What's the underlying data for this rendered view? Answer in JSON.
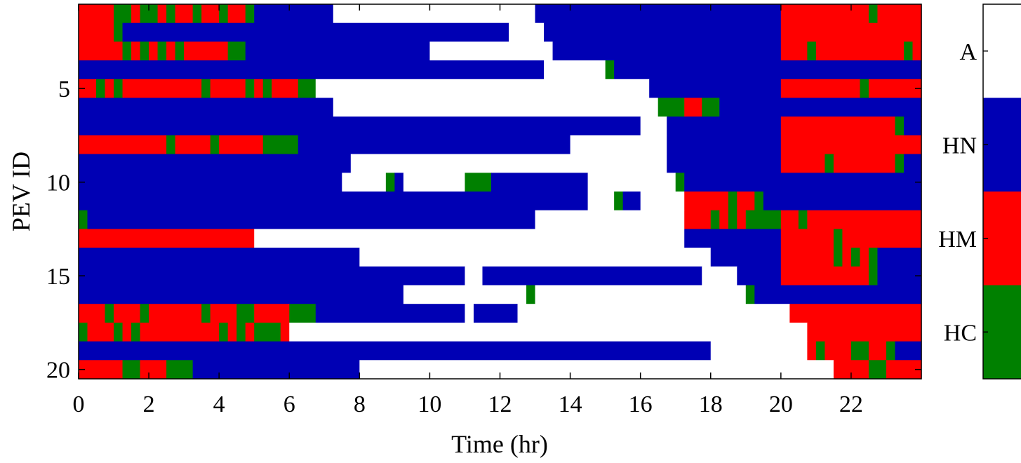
{
  "chart_data": {
    "type": "heatmap",
    "title": "",
    "xlabel": "Time (hr)",
    "ylabel": "PEV ID",
    "xlim": [
      0,
      24
    ],
    "ylim": [
      1,
      20
    ],
    "x_ticks": [
      "0",
      "2",
      "4",
      "6",
      "8",
      "10",
      "12",
      "14",
      "16",
      "18",
      "20",
      "22"
    ],
    "y_ticks": [
      "5",
      "10",
      "15",
      "20"
    ],
    "time_resolution_hr": 0.25,
    "categories": [
      "A",
      "HN",
      "HM",
      "HC"
    ],
    "colors": {
      "A": "#ffffff",
      "HN": "#0000b4",
      "HM": "#ff0000",
      "HC": "#008000"
    },
    "colorbar_labels": [
      "A",
      "HN",
      "HM",
      "HC"
    ],
    "rows": [
      {
        "pev": 1,
        "segments": [
          [
            "HM",
            0,
            1
          ],
          [
            "HC",
            1,
            1.5
          ],
          [
            "HM",
            1.5,
            1.75
          ],
          [
            "HC",
            1.75,
            2.25
          ],
          [
            "HM",
            2.25,
            2.5
          ],
          [
            "HC",
            2.5,
            2.75
          ],
          [
            "HM",
            2.75,
            3.25
          ],
          [
            "HC",
            3.25,
            3.5
          ],
          [
            "HM",
            3.5,
            4
          ],
          [
            "HC",
            4,
            4.25
          ],
          [
            "HM",
            4.25,
            4.75
          ],
          [
            "HC",
            4.75,
            5
          ],
          [
            "HN",
            5,
            7.25
          ],
          [
            "A",
            7.25,
            13
          ],
          [
            "HN",
            13,
            20
          ],
          [
            "HM",
            20,
            22.5
          ],
          [
            "HC",
            22.5,
            22.75
          ],
          [
            "HM",
            22.75,
            24
          ]
        ]
      },
      {
        "pev": 2,
        "segments": [
          [
            "HM",
            0,
            1
          ],
          [
            "HC",
            1,
            1.25
          ],
          [
            "HN",
            1.25,
            12.25
          ],
          [
            "A",
            12.25,
            13.25
          ],
          [
            "HN",
            13.25,
            20
          ],
          [
            "HM",
            20,
            24
          ]
        ]
      },
      {
        "pev": 3,
        "segments": [
          [
            "HM",
            0,
            1.25
          ],
          [
            "HC",
            1.25,
            1.5
          ],
          [
            "HM",
            1.5,
            1.75
          ],
          [
            "HC",
            1.75,
            2
          ],
          [
            "HM",
            2,
            2.25
          ],
          [
            "HC",
            2.25,
            2.5
          ],
          [
            "HM",
            2.5,
            2.75
          ],
          [
            "HC",
            2.75,
            3
          ],
          [
            "HM",
            3,
            4.25
          ],
          [
            "HC",
            4.25,
            4.75
          ],
          [
            "HN",
            4.75,
            10
          ],
          [
            "A",
            10,
            13.5
          ],
          [
            "HN",
            13.5,
            20
          ],
          [
            "HM",
            20,
            20.75
          ],
          [
            "HC",
            20.75,
            21
          ],
          [
            "HM",
            21,
            23.5
          ],
          [
            "HC",
            23.5,
            23.75
          ],
          [
            "HM",
            23.75,
            24
          ]
        ]
      },
      {
        "pev": 4,
        "segments": [
          [
            "HN",
            0,
            13.25
          ],
          [
            "A",
            13.25,
            15
          ],
          [
            "HC",
            15,
            15.25
          ],
          [
            "HN",
            15.25,
            24
          ]
        ]
      },
      {
        "pev": 5,
        "segments": [
          [
            "HM",
            0,
            0.5
          ],
          [
            "HC",
            0.5,
            0.75
          ],
          [
            "HM",
            0.75,
            1
          ],
          [
            "HC",
            1,
            1.25
          ],
          [
            "HM",
            1.25,
            3.5
          ],
          [
            "HC",
            3.5,
            3.75
          ],
          [
            "HM",
            3.75,
            4.75
          ],
          [
            "HC",
            4.75,
            5
          ],
          [
            "HM",
            5,
            5.25
          ],
          [
            "HC",
            5.25,
            5.5
          ],
          [
            "HM",
            5.5,
            6.25
          ],
          [
            "HC",
            6.25,
            6.75
          ],
          [
            "A",
            6.75,
            16.25
          ],
          [
            "HN",
            16.25,
            20
          ],
          [
            "HM",
            20,
            22.25
          ],
          [
            "HC",
            22.25,
            22.5
          ],
          [
            "HM",
            22.5,
            24
          ]
        ]
      },
      {
        "pev": 6,
        "segments": [
          [
            "HN",
            0,
            7.25
          ],
          [
            "A",
            7.25,
            16.5
          ],
          [
            "HC",
            16.5,
            17.25
          ],
          [
            "HM",
            17.25,
            17.75
          ],
          [
            "HC",
            17.75,
            18.25
          ],
          [
            "HN",
            18.25,
            24
          ]
        ]
      },
      {
        "pev": 7,
        "segments": [
          [
            "HN",
            0,
            16
          ],
          [
            "A",
            16,
            16.75
          ],
          [
            "HN",
            16.75,
            20
          ],
          [
            "HM",
            20,
            23.25
          ],
          [
            "HC",
            23.25,
            23.5
          ],
          [
            "HN",
            23.5,
            24
          ]
        ]
      },
      {
        "pev": 8,
        "segments": [
          [
            "HM",
            0,
            2.5
          ],
          [
            "HC",
            2.5,
            2.75
          ],
          [
            "HM",
            2.75,
            3.75
          ],
          [
            "HC",
            3.75,
            4
          ],
          [
            "HM",
            4,
            5.25
          ],
          [
            "HC",
            5.25,
            6.25
          ],
          [
            "HN",
            6.25,
            14
          ],
          [
            "A",
            14,
            16.75
          ],
          [
            "HN",
            16.75,
            20
          ],
          [
            "HM",
            20,
            24
          ]
        ]
      },
      {
        "pev": 9,
        "segments": [
          [
            "HN",
            0,
            7.75
          ],
          [
            "A",
            7.75,
            16.75
          ],
          [
            "HN",
            16.75,
            20
          ],
          [
            "HM",
            20,
            21.25
          ],
          [
            "HC",
            21.25,
            21.5
          ],
          [
            "HM",
            21.5,
            23.25
          ],
          [
            "HC",
            23.25,
            23.5
          ],
          [
            "HN",
            23.5,
            24
          ]
        ]
      },
      {
        "pev": 10,
        "segments": [
          [
            "HN",
            0,
            7.5
          ],
          [
            "A",
            7.5,
            8.75
          ],
          [
            "HC",
            8.75,
            9
          ],
          [
            "HN",
            9,
            9.25
          ],
          [
            "A",
            9.25,
            11
          ],
          [
            "HC",
            11,
            11.75
          ],
          [
            "HN",
            11.75,
            14.5
          ],
          [
            "A",
            14.5,
            17
          ],
          [
            "HC",
            17,
            17.25
          ],
          [
            "HN",
            17.25,
            24
          ]
        ]
      },
      {
        "pev": 11,
        "segments": [
          [
            "HN",
            0,
            14.5
          ],
          [
            "A",
            14.5,
            15.25
          ],
          [
            "HC",
            15.25,
            15.5
          ],
          [
            "HN",
            15.5,
            16
          ],
          [
            "A",
            16,
            17.25
          ],
          [
            "HM",
            17.25,
            18.5
          ],
          [
            "HC",
            18.5,
            18.75
          ],
          [
            "HM",
            18.75,
            19.25
          ],
          [
            "HC",
            19.25,
            19.5
          ],
          [
            "HN",
            19.5,
            24
          ]
        ]
      },
      {
        "pev": 12,
        "segments": [
          [
            "HC",
            0,
            0.25
          ],
          [
            "HN",
            0.25,
            13
          ],
          [
            "A",
            13,
            17.25
          ],
          [
            "HM",
            17.25,
            18
          ],
          [
            "HC",
            18,
            18.25
          ],
          [
            "HM",
            18.25,
            18.5
          ],
          [
            "HC",
            18.5,
            18.75
          ],
          [
            "HM",
            18.75,
            19
          ],
          [
            "HC",
            19,
            20
          ],
          [
            "HM",
            20,
            20.5
          ],
          [
            "HC",
            20.5,
            20.75
          ],
          [
            "HM",
            20.75,
            24
          ]
        ]
      },
      {
        "pev": 13,
        "segments": [
          [
            "HM",
            0,
            5
          ],
          [
            "A",
            5,
            17.25
          ],
          [
            "HN",
            17.25,
            20
          ],
          [
            "HM",
            20,
            21.5
          ],
          [
            "HC",
            21.5,
            21.75
          ],
          [
            "HM",
            21.75,
            24
          ]
        ]
      },
      {
        "pev": 14,
        "segments": [
          [
            "HN",
            0,
            8
          ],
          [
            "A",
            8,
            18
          ],
          [
            "HN",
            18,
            20
          ],
          [
            "HM",
            20,
            21.5
          ],
          [
            "HC",
            21.5,
            21.75
          ],
          [
            "HM",
            21.75,
            22
          ],
          [
            "HC",
            22,
            22.25
          ],
          [
            "HM",
            22.25,
            22.5
          ],
          [
            "HC",
            22.5,
            22.75
          ],
          [
            "HN",
            22.75,
            24
          ]
        ]
      },
      {
        "pev": 15,
        "segments": [
          [
            "HN",
            0,
            11
          ],
          [
            "A",
            11,
            11.5
          ],
          [
            "HN",
            11.5,
            17.75
          ],
          [
            "A",
            17.75,
            18.75
          ],
          [
            "HN",
            18.75,
            20
          ],
          [
            "HM",
            20,
            22.5
          ],
          [
            "HC",
            22.5,
            22.75
          ],
          [
            "HN",
            22.75,
            24
          ]
        ]
      },
      {
        "pev": 16,
        "segments": [
          [
            "HN",
            0,
            9.25
          ],
          [
            "A",
            9.25,
            12.75
          ],
          [
            "HC",
            12.75,
            13
          ],
          [
            "A",
            13,
            19
          ],
          [
            "HC",
            19,
            19.25
          ],
          [
            "HN",
            19.25,
            24
          ]
        ]
      },
      {
        "pev": 17,
        "segments": [
          [
            "HM",
            0,
            0.75
          ],
          [
            "HC",
            0.75,
            1
          ],
          [
            "HM",
            1,
            1.75
          ],
          [
            "HC",
            1.75,
            2
          ],
          [
            "HM",
            2,
            3.5
          ],
          [
            "HC",
            3.5,
            3.75
          ],
          [
            "HM",
            3.75,
            4.5
          ],
          [
            "HC",
            4.5,
            5
          ],
          [
            "HM",
            5,
            6
          ],
          [
            "HC",
            6,
            6.75
          ],
          [
            "HN",
            6.75,
            11
          ],
          [
            "A",
            11,
            11.25
          ],
          [
            "HN",
            11.25,
            12.5
          ],
          [
            "A",
            12.5,
            20.25
          ],
          [
            "HM",
            20.25,
            24
          ]
        ]
      },
      {
        "pev": 18,
        "segments": [
          [
            "HC",
            0,
            0.25
          ],
          [
            "HM",
            0.25,
            1
          ],
          [
            "HC",
            1,
            1.25
          ],
          [
            "HM",
            1.25,
            1.5
          ],
          [
            "HC",
            1.5,
            1.75
          ],
          [
            "HM",
            1.75,
            4
          ],
          [
            "HC",
            4,
            4.25
          ],
          [
            "HM",
            4.25,
            4.5
          ],
          [
            "HC",
            4.5,
            4.75
          ],
          [
            "HM",
            4.75,
            5
          ],
          [
            "HC",
            5,
            5.75
          ],
          [
            "HM",
            5.75,
            6
          ],
          [
            "A",
            6,
            20.75
          ],
          [
            "HM",
            20.75,
            24
          ]
        ]
      },
      {
        "pev": 19,
        "segments": [
          [
            "HN",
            0,
            18
          ],
          [
            "A",
            18,
            20.75
          ],
          [
            "HM",
            20.75,
            21
          ],
          [
            "HC",
            21,
            21.25
          ],
          [
            "HM",
            21.25,
            22
          ],
          [
            "HC",
            22,
            22.5
          ],
          [
            "HM",
            22.5,
            23
          ],
          [
            "HC",
            23,
            23.25
          ],
          [
            "HN",
            23.25,
            24
          ]
        ]
      },
      {
        "pev": 20,
        "segments": [
          [
            "HM",
            0,
            1.25
          ],
          [
            "HC",
            1.25,
            1.75
          ],
          [
            "HM",
            1.75,
            2.5
          ],
          [
            "HC",
            2.5,
            3.25
          ],
          [
            "HN",
            3.25,
            8
          ],
          [
            "A",
            8,
            21.5
          ],
          [
            "HM",
            21.5,
            22.5
          ],
          [
            "HC",
            22.5,
            23
          ],
          [
            "HM",
            23,
            24
          ]
        ]
      }
    ]
  }
}
